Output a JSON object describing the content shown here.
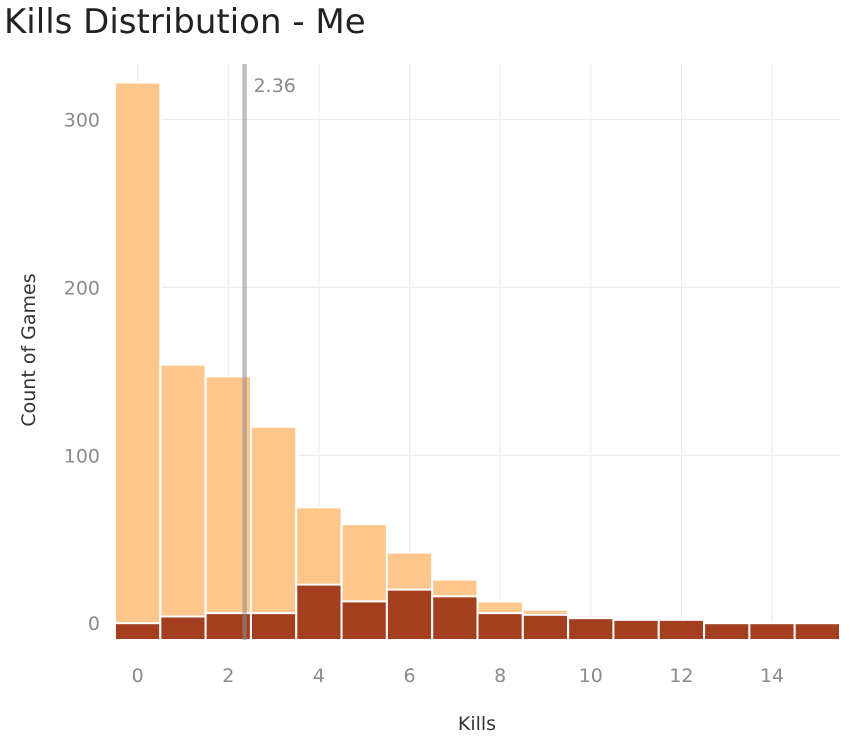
{
  "title": "Kills Distribution - Me",
  "colors": {
    "light_series": "#fec68a",
    "dark_series": "#a33f1f",
    "mean_line": "#8c8c8c",
    "grid": "#ececec",
    "tick_text": "#8a8a8a"
  },
  "chart_data": {
    "type": "bar",
    "stacked": false,
    "xlabel": "Kills",
    "ylabel": "Count of Games",
    "xlim": [
      -0.5,
      15.5
    ],
    "ylim": [
      -10,
      333
    ],
    "x_ticks": [
      0,
      2,
      4,
      6,
      8,
      10,
      12,
      14
    ],
    "y_ticks": [
      0,
      100,
      200,
      300
    ],
    "grid": true,
    "legend": "none",
    "x": [
      0,
      1,
      2,
      3,
      4,
      5,
      6,
      7,
      8,
      9,
      10,
      11,
      12,
      13,
      14,
      15
    ],
    "series": [
      {
        "color": "light_series",
        "values": [
          322,
          154,
          147,
          117,
          69,
          59,
          42,
          26,
          13,
          8,
          3,
          2,
          2,
          0,
          0,
          1
        ]
      },
      {
        "color": "dark_series",
        "values": [
          0,
          4,
          6,
          6,
          23,
          13,
          20,
          16,
          6,
          5,
          3,
          2,
          2,
          0,
          0,
          0
        ]
      }
    ],
    "mean_line": {
      "value": 2.36,
      "label": "2.36"
    }
  }
}
